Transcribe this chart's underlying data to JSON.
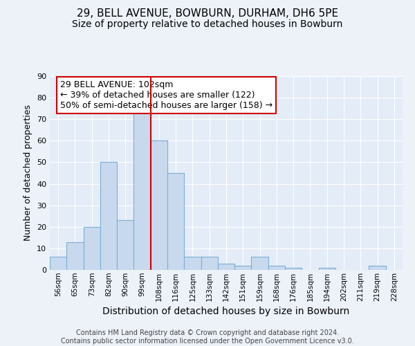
{
  "title1": "29, BELL AVENUE, BOWBURN, DURHAM, DH6 5PE",
  "title2": "Size of property relative to detached houses in Bowburn",
  "xlabel": "Distribution of detached houses by size in Bowburn",
  "ylabel": "Number of detached properties",
  "footer1": "Contains HM Land Registry data © Crown copyright and database right 2024.",
  "footer2": "Contains public sector information licensed under the Open Government Licence v3.0.",
  "annotation_line1": "29 BELL AVENUE: 102sqm",
  "annotation_line2": "← 39% of detached houses are smaller (122)",
  "annotation_line3": "50% of semi-detached houses are larger (158) →",
  "bar_categories": [
    "56sqm",
    "65sqm",
    "73sqm",
    "82sqm",
    "90sqm",
    "99sqm",
    "108sqm",
    "116sqm",
    "125sqm",
    "133sqm",
    "142sqm",
    "151sqm",
    "159sqm",
    "168sqm",
    "176sqm",
    "185sqm",
    "194sqm",
    "202sqm",
    "211sqm",
    "219sqm",
    "228sqm"
  ],
  "bar_values": [
    6,
    13,
    20,
    50,
    23,
    73,
    60,
    45,
    6,
    6,
    3,
    2,
    6,
    2,
    1,
    0,
    1,
    0,
    0,
    2,
    0
  ],
  "bar_color": "#c8d9ee",
  "bar_edge_color": "#7bafd4",
  "vline_x_idx": 5.5,
  "vline_color": "#cc0000",
  "ylim": [
    0,
    90
  ],
  "yticks": [
    0,
    10,
    20,
    30,
    40,
    50,
    60,
    70,
    80,
    90
  ],
  "bg_color": "#edf2f9",
  "plot_bg_color": "#e4ecf7",
  "grid_color": "#ffffff",
  "annotation_box_facecolor": "#ffffff",
  "annotation_box_edgecolor": "#cc0000",
  "title1_fontsize": 11,
  "title2_fontsize": 10,
  "xlabel_fontsize": 10,
  "ylabel_fontsize": 9,
  "xtick_fontsize": 7.5,
  "ytick_fontsize": 8,
  "footer_fontsize": 7,
  "annotation_fontsize": 9
}
